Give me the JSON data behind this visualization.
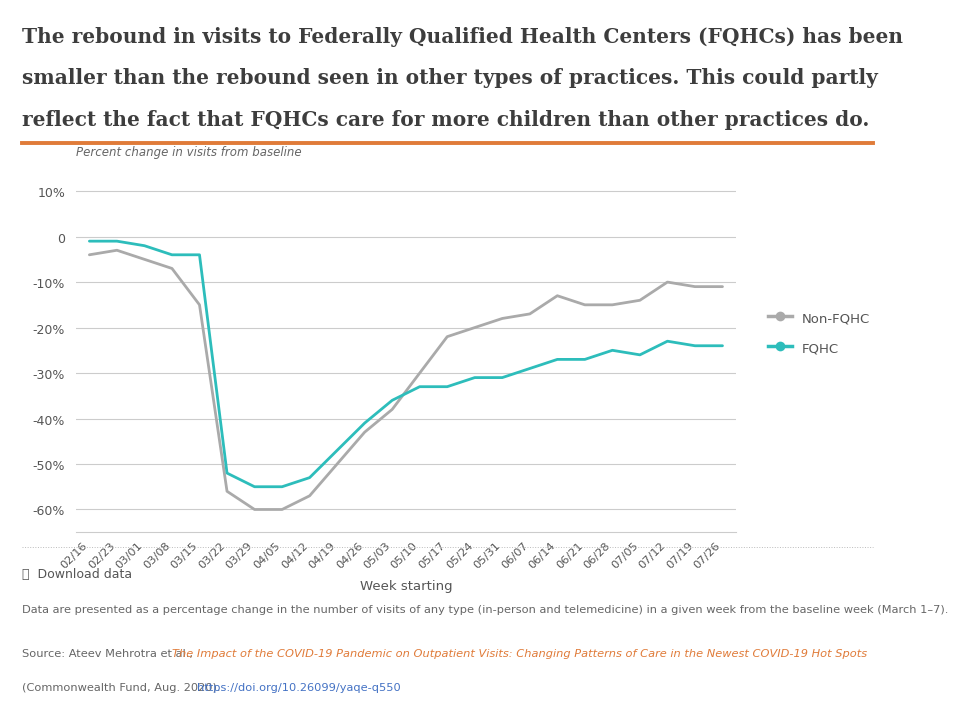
{
  "title_line1": "The rebound in visits to Federally Qualified Health Centers (FQHCs) has been",
  "title_line2": "smaller than the rebound seen in other types of practices. This could partly",
  "title_line3": "reflect the fact that FQHCs care for more children than other practices do.",
  "title_color": "#3d3d3d",
  "title_fontsize": 14.5,
  "orange_line_color": "#e07b39",
  "ylabel": "Percent change in visits from baseline",
  "xlabel": "Week starting",
  "ylim": [
    -65,
    15
  ],
  "yticks": [
    10,
    0,
    -10,
    -20,
    -30,
    -40,
    -50,
    -60
  ],
  "background_color": "#ffffff",
  "grid_color": "#cccccc",
  "non_fqhc_color": "#aaaaaa",
  "fqhc_color": "#2dbdbb",
  "x_labels": [
    "02/16",
    "02/23",
    "03/01",
    "03/08",
    "03/15",
    "03/22",
    "03/29",
    "04/05",
    "04/12",
    "04/19",
    "04/26",
    "05/03",
    "05/10",
    "05/17",
    "05/24",
    "05/31",
    "06/07",
    "06/14",
    "06/21",
    "06/28",
    "07/05",
    "07/12",
    "07/19",
    "07/26"
  ],
  "non_fqhc_values": [
    -4,
    -3,
    -5,
    -7,
    -15,
    -56,
    -60,
    -60,
    -57,
    -50,
    -43,
    -38,
    -30,
    -22,
    -20,
    -18,
    -17,
    -13,
    -15,
    -15,
    -14,
    -10,
    -11,
    -11
  ],
  "fqhc_values": [
    -1,
    -1,
    -2,
    -4,
    -4,
    -52,
    -55,
    -55,
    -53,
    -47,
    -41,
    -36,
    -33,
    -33,
    -31,
    -31,
    -29,
    -27,
    -27,
    -25,
    -26,
    -23,
    -24,
    -24
  ],
  "footnote": "Data are presented as a percentage change in the number of visits of any type (in-person and telemedicine) in a given week from the baseline week (March 1–7).",
  "source_plain": "Source: Ateev Mehrotra et al., ",
  "source_italic": "The Impact of the COVID-19 Pandemic on Outpatient Visits: Changing Patterns of Care in the Newest COVID-19 Hot Spots",
  "source_end": "(Commonwealth Fund, Aug. 2020). ",
  "source_url": "https://doi.org/10.26099/yaqe-q550",
  "source_orange_color": "#e07b39",
  "source_blue_color": "#4472c4",
  "download_text": "⤓  Download data",
  "legend_non_fqhc": "Non-FQHC",
  "legend_fqhc": "FQHC"
}
